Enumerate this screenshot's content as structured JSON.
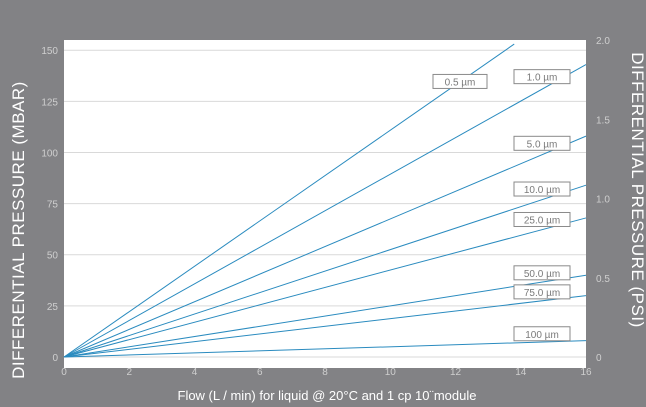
{
  "chart_data": {
    "type": "line",
    "xlabel": "Flow (L / min) for liquid @ 20°C and 1 cp 10¨module",
    "ylabel": "DIFFERENTIAL PRESSURE  (MBAR)",
    "ylabel_right": "DIFFERENTIAL PRESSURE  (PSI)",
    "xlim": [
      0,
      16
    ],
    "ylim": [
      0,
      155
    ],
    "ylim_right": [
      0,
      2.0
    ],
    "x_ticks": [
      0,
      2,
      4,
      6,
      8,
      10,
      12,
      14,
      16
    ],
    "y_ticks": [
      0,
      25,
      50,
      75,
      100,
      125,
      150
    ],
    "y_ticks_right": [
      "0",
      "0.5",
      "1.0",
      "1.5",
      "2.0"
    ],
    "grid": true,
    "line_color": "#2a8bbf",
    "series": [
      {
        "name": "0.5 µm",
        "x": [
          0,
          13.8
        ],
        "y": [
          0,
          153
        ]
      },
      {
        "name": "1.0 µm",
        "x": [
          0,
          16
        ],
        "y": [
          0,
          143
        ]
      },
      {
        "name": "5.0 µm",
        "x": [
          0,
          16
        ],
        "y": [
          0,
          108
        ]
      },
      {
        "name": "10.0 µm",
        "x": [
          0,
          16
        ],
        "y": [
          0,
          84
        ]
      },
      {
        "name": "25.0 µm",
        "x": [
          0,
          16
        ],
        "y": [
          0,
          68
        ]
      },
      {
        "name": "50.0 µm",
        "x": [
          0,
          16
        ],
        "y": [
          0,
          40
        ]
      },
      {
        "name": "75.0 µm",
        "x": [
          0,
          16
        ],
        "y": [
          0,
          30
        ]
      },
      {
        "name": "100 µm",
        "x": [
          0,
          16
        ],
        "y": [
          0,
          8
        ]
      }
    ]
  }
}
